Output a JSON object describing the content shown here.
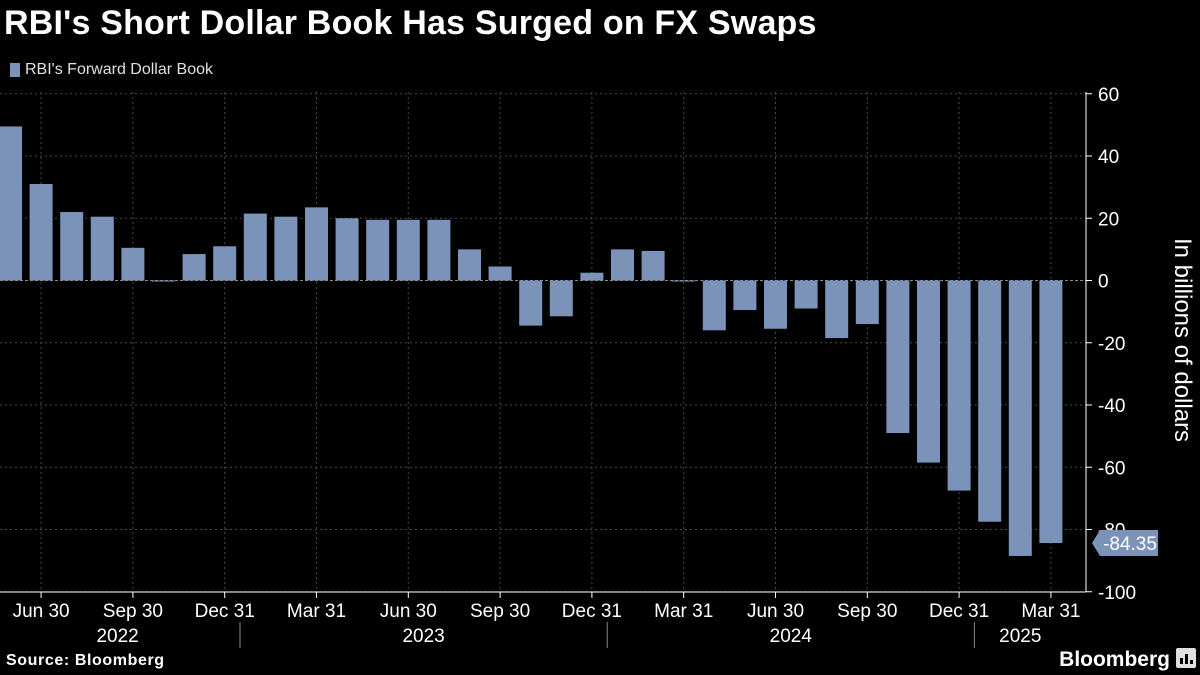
{
  "title": "RBI's Short Dollar Book Has Surged on FX Swaps",
  "source": "Source: Bloomberg",
  "brand": "Bloomberg",
  "colors": {
    "bar": "#7b93b9",
    "background": "#000000",
    "grid": "#4a4a4a",
    "axis": "#ffffff"
  },
  "chart_data": {
    "type": "bar",
    "title": "RBI's Short Dollar Book Has Surged on FX Swaps",
    "ylabel": "In billions of dollars",
    "ylim": [
      -105,
      62
    ],
    "yticks": [
      60,
      40,
      20,
      0,
      -20,
      -40,
      -60,
      -80,
      -100
    ],
    "y_axis_position": "right",
    "grid": true,
    "legend_placement": "top-left",
    "series": [
      {
        "name": "RBI's Forward Dollar Book",
        "values": [
          49.5,
          31,
          22,
          20.5,
          10.5,
          0,
          8.5,
          11,
          21.5,
          20.5,
          23.5,
          20,
          19.5,
          19.5,
          19.5,
          10,
          4.5,
          -14.5,
          -11.5,
          2.5,
          10,
          9.5,
          -0.3,
          -16,
          -9.5,
          -15.5,
          -9,
          -18.5,
          -14,
          -49,
          -58.5,
          -67.5,
          -77.5,
          -88.5,
          -84.35
        ]
      }
    ],
    "x_tick_labels": [
      {
        "label": "Jun 30",
        "index": 1
      },
      {
        "label": "Sep 30",
        "index": 4
      },
      {
        "label": "Dec 31",
        "index": 7
      },
      {
        "label": "Mar 31",
        "index": 10
      },
      {
        "label": "Jun 30",
        "index": 13
      },
      {
        "label": "Sep 30",
        "index": 16
      },
      {
        "label": "Dec 31",
        "index": 19
      },
      {
        "label": "Mar 31",
        "index": 22
      },
      {
        "label": "Jun 30",
        "index": 25
      },
      {
        "label": "Sep 30",
        "index": 28
      },
      {
        "label": "Dec 31",
        "index": 31
      },
      {
        "label": "Mar 31",
        "index": 34
      }
    ],
    "year_labels": [
      {
        "label": "2022",
        "from_index": 0,
        "to_index": 7
      },
      {
        "label": "2023",
        "from_index": 8,
        "to_index": 19
      },
      {
        "label": "2024",
        "from_index": 20,
        "to_index": 31
      },
      {
        "label": "2025",
        "from_index": 32,
        "to_index": 34
      }
    ],
    "annotations": [
      {
        "text": "-84.35",
        "value": -84.35
      }
    ]
  }
}
